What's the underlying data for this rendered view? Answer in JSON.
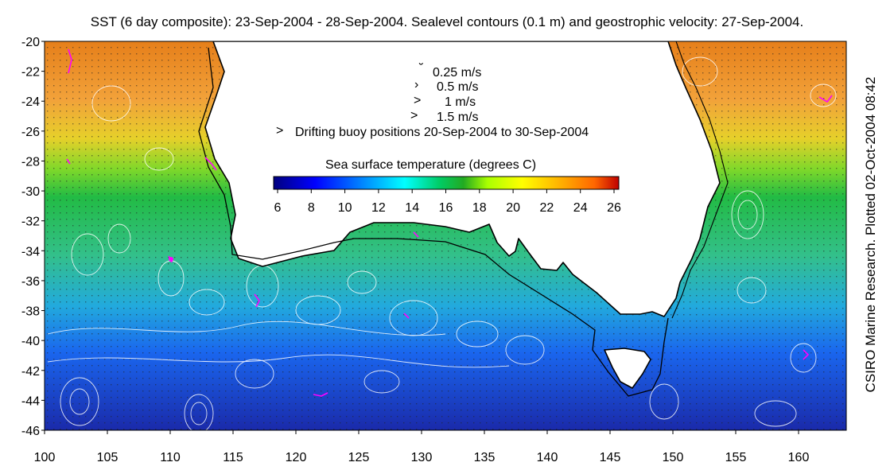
{
  "title": "SST (6 day composite): 23-Sep-2004 - 28-Sep-2004. Sealevel contours (0.1 m) and geostrophic velocity: 27-Sep-2004.",
  "credit": "CSIRO Marine Research. Plotted 02-Oct-2004 08:42",
  "lat_ticks": [
    "-20",
    "-22",
    "-24",
    "-26",
    "-28",
    "-30",
    "-32",
    "-34",
    "-36",
    "-38",
    "-40",
    "-42",
    "-44",
    "-46"
  ],
  "lon_ticks": [
    "100",
    "105",
    "110",
    "115",
    "120",
    "125",
    "130",
    "135",
    "140",
    "145",
    "150",
    "155",
    "160"
  ],
  "velocity_legend": [
    {
      "label": "0.25 m/s",
      "arrow": "˘"
    },
    {
      "label": "0.5 m/s",
      "arrow": "›"
    },
    {
      "label": "1 m/s",
      "arrow": ">"
    },
    {
      "label": "1.5 m/s",
      "arrow": ">"
    }
  ],
  "buoy_legend": {
    "arrow": ">",
    "label": "Drifting buoy positions 20-Sep-2004 to 30-Sep-2004",
    "color": "#ff00ff"
  },
  "colorbar": {
    "label": "Sea surface temperature (degrees C)",
    "ticks": [
      "6",
      "8",
      "10",
      "12",
      "14",
      "16",
      "18",
      "20",
      "22",
      "24",
      "26"
    ],
    "colors": [
      "#00007f",
      "#0000ff",
      "#007fff",
      "#00ffff",
      "#00cc66",
      "#22aa22",
      "#aaff00",
      "#ffff00",
      "#ffaa00",
      "#ff7f00",
      "#bf0000"
    ]
  },
  "colors": {
    "land": "#ffffff",
    "contours": "#ffffff",
    "coast": "#000000",
    "buoy": "#ff00ff"
  }
}
